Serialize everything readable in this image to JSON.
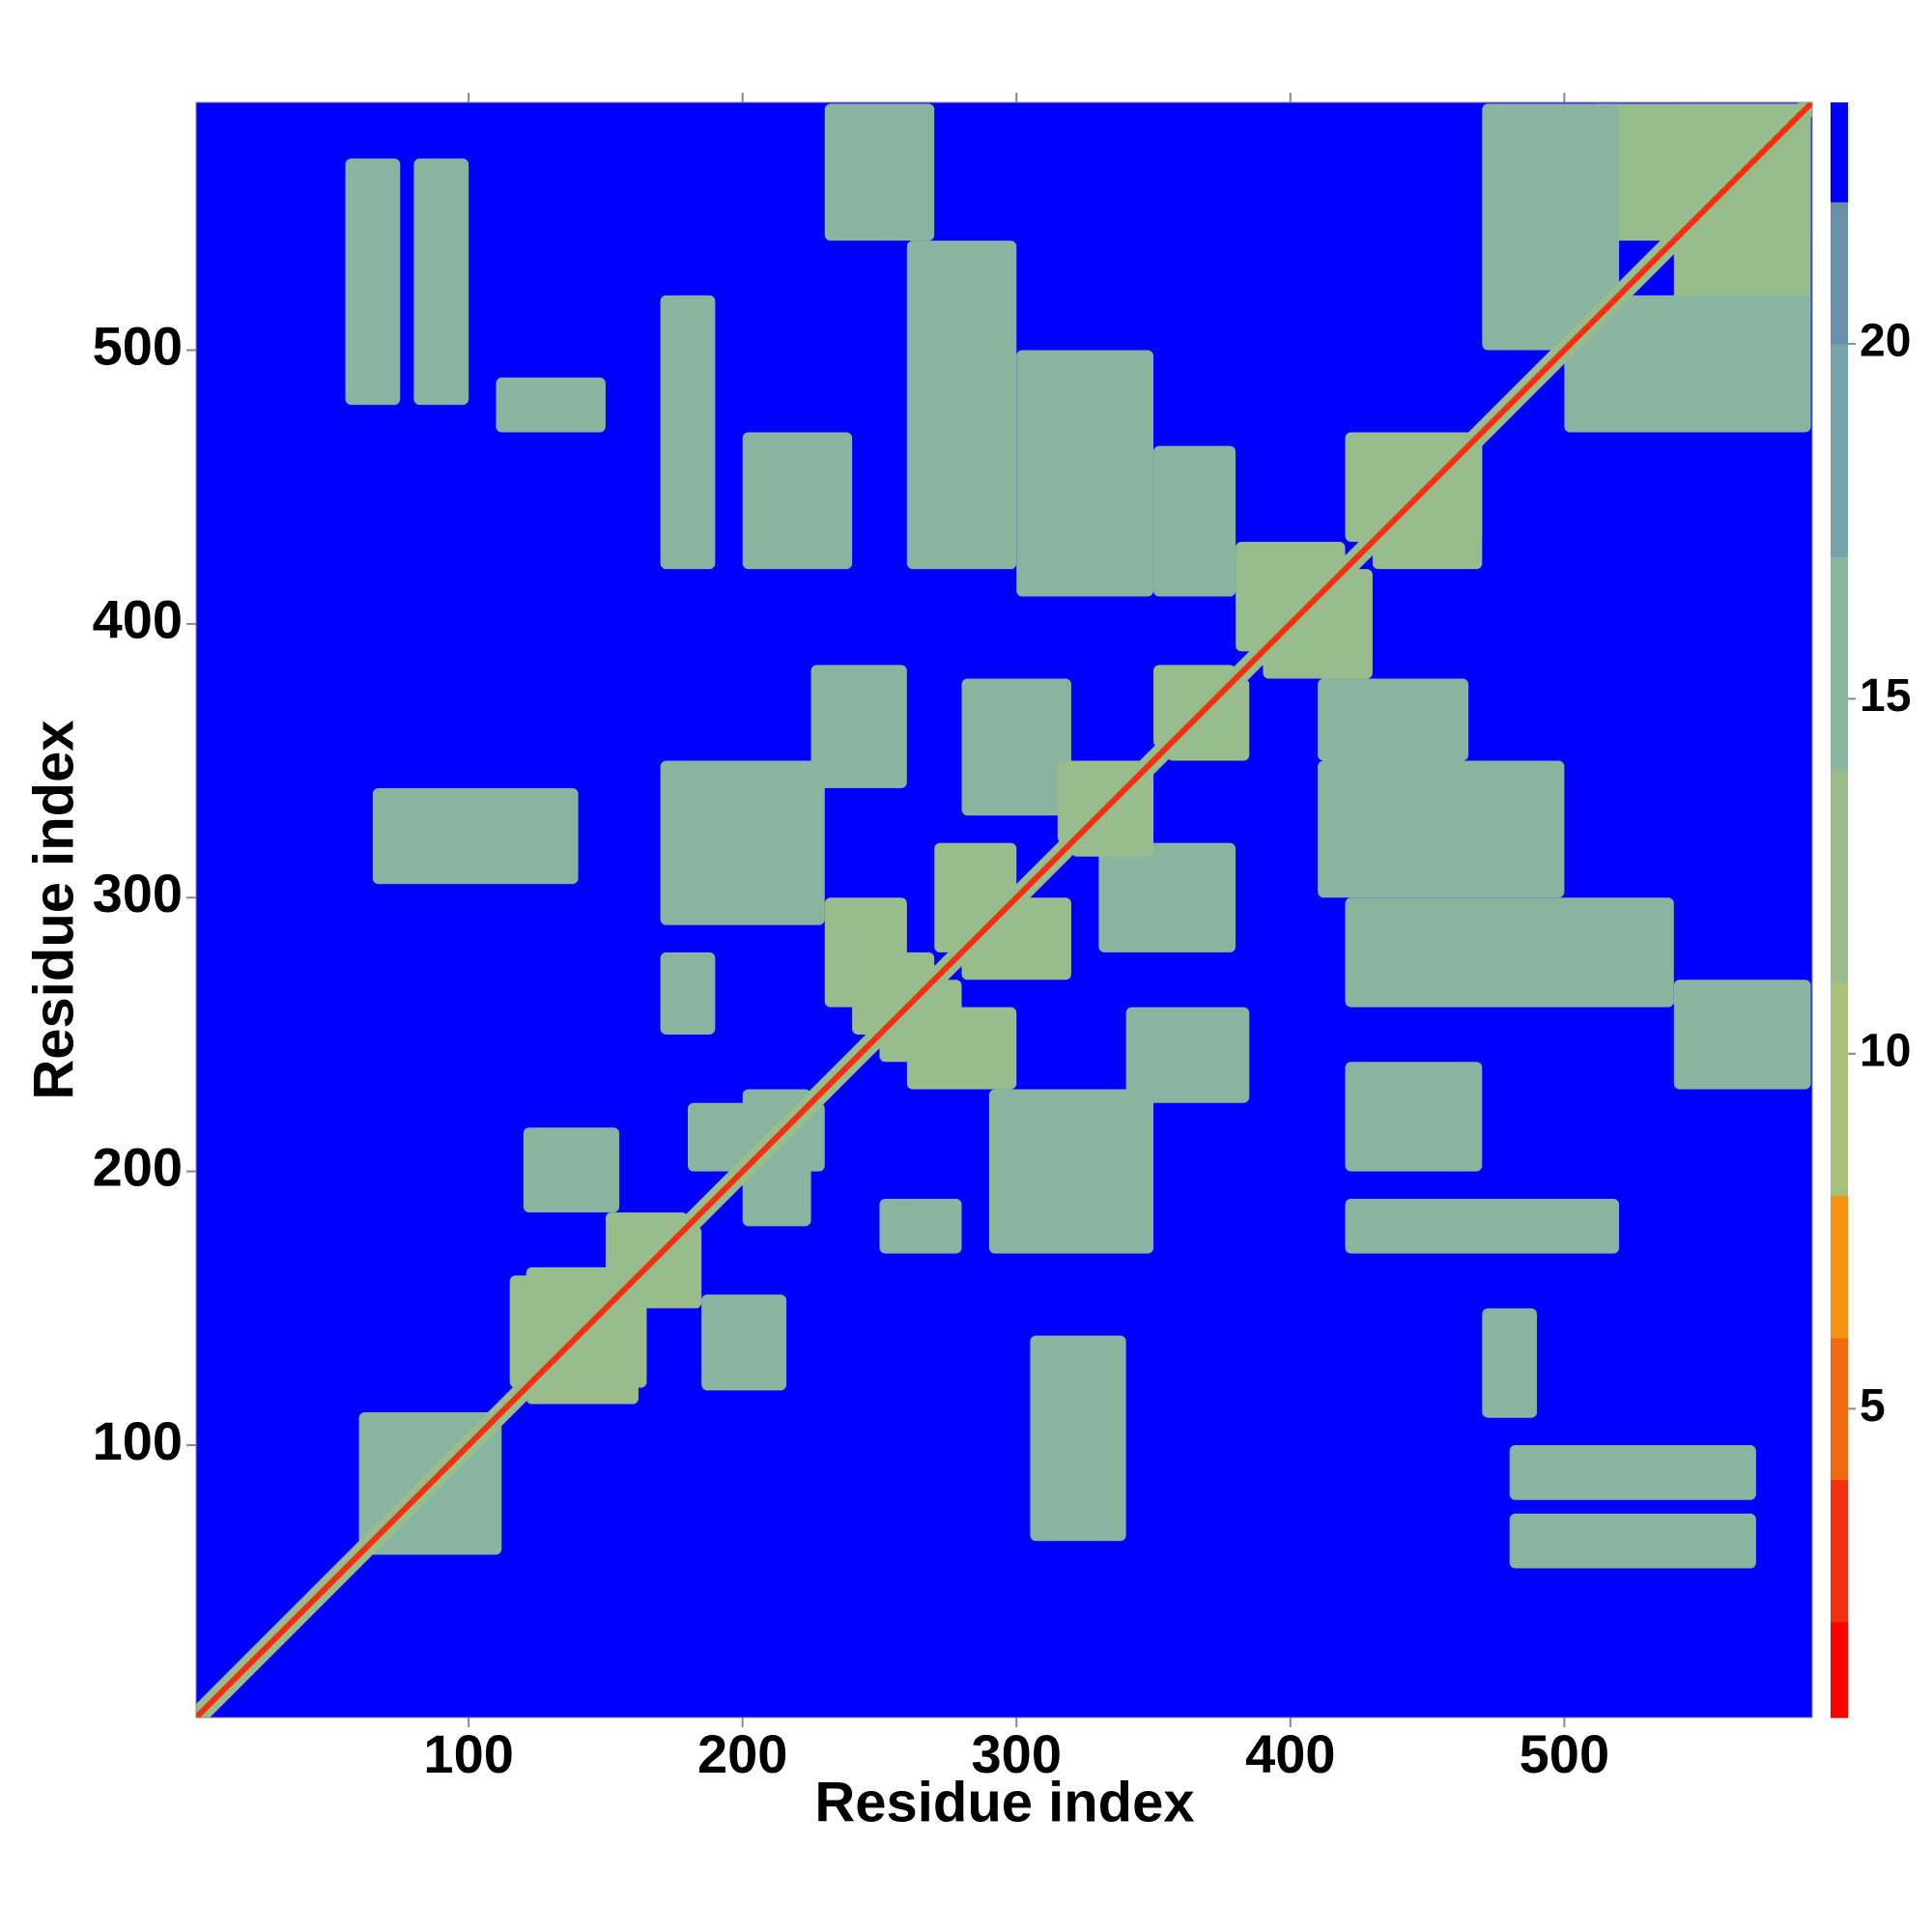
{
  "chart_data": {
    "type": "heatmap",
    "x_label": "Residue index",
    "y_label": "Residue index",
    "xlim": [
      0.5,
      590.5
    ],
    "ylim": [
      0.5,
      590.5
    ],
    "xticks": [
      100,
      200,
      300,
      400,
      500
    ],
    "yticks": [
      100,
      200,
      300,
      400,
      500
    ],
    "symmetric": true,
    "background_value": 23,
    "diagonal": [
      {
        "width": 10,
        "value": 13
      },
      {
        "width": 3,
        "value": 2
      }
    ],
    "patches": [
      {
        "x": [
          60,
          112
        ],
        "y": [
          60,
          112
        ],
        "value": 15
      },
      {
        "x": [
          55,
          75
        ],
        "y": [
          480,
          570
        ],
        "value": 15
      },
      {
        "x": [
          80,
          100
        ],
        "y": [
          480,
          570
        ],
        "value": 15
      },
      {
        "x": [
          110,
          150
        ],
        "y": [
          470,
          490
        ],
        "value": 16
      },
      {
        "x": [
          65,
          140
        ],
        "y": [
          305,
          340
        ],
        "value": 15
      },
      {
        "x": [
          170,
          190
        ],
        "y": [
          250,
          280
        ],
        "value": 16
      },
      {
        "x": [
          170,
          230
        ],
        "y": [
          290,
          350
        ],
        "value": 14
      },
      {
        "x": [
          225,
          260
        ],
        "y": [
          340,
          385
        ],
        "value": 14
      },
      {
        "x": [
          170,
          190
        ],
        "y": [
          420,
          520
        ],
        "value": 15
      },
      {
        "x": [
          200,
          240
        ],
        "y": [
          420,
          470
        ],
        "value": 15
      },
      {
        "x": [
          230,
          270
        ],
        "y": [
          540,
          590
        ],
        "value": 16
      },
      {
        "x": [
          260,
          300
        ],
        "y": [
          420,
          540
        ],
        "value": 15
      },
      {
        "x": [
          300,
          350
        ],
        "y": [
          410,
          500
        ],
        "value": 14
      },
      {
        "x": [
          280,
          320
        ],
        "y": [
          330,
          380
        ],
        "value": 14
      },
      {
        "x": [
          350,
          380
        ],
        "y": [
          410,
          465
        ],
        "value": 14
      },
      {
        "x": [
          230,
          260
        ],
        "y": [
          260,
          300
        ],
        "value": 13
      },
      {
        "x": [
          115,
          165
        ],
        "y": [
          121,
          162
        ],
        "value": 13
      },
      {
        "x": [
          120,
          155
        ],
        "y": [
          185,
          216
        ],
        "value": 15
      },
      {
        "x": [
          180,
          230
        ],
        "y": [
          200,
          225
        ],
        "value": 14
      },
      {
        "x": [
          510,
          590
        ],
        "y": [
          540,
          590
        ],
        "value": 13
      },
      {
        "x": [
          470,
          520
        ],
        "y": [
          500,
          590
        ],
        "value": 15
      },
      {
        "x": [
          430,
          470
        ],
        "y": [
          420,
          470
        ],
        "value": 13
      },
      {
        "x": [
          380,
          420
        ],
        "y": [
          390,
          430
        ],
        "value": 12
      },
      {
        "x": [
          350,
          380
        ],
        "y": [
          355,
          385
        ],
        "value": 13
      },
      {
        "x": [
          250,
          280
        ],
        "y": [
          240,
          270
        ],
        "value": 13
      },
      {
        "x": [
          150,
          180
        ],
        "y": [
          155,
          185
        ],
        "value": 13
      },
      {
        "x": [
          320,
          350
        ],
        "y": [
          315,
          350
        ],
        "value": 13
      },
      {
        "x": [
          270,
          300
        ],
        "y": [
          280,
          320
        ],
        "value": 13
      }
    ],
    "colorbar": {
      "bounds": [
        0.65,
        2,
        4,
        6,
        8,
        11,
        14,
        17,
        20,
        22,
        23.4
      ],
      "colors": [
        "#ff0000",
        "#f03010",
        "#f06a10",
        "#f59010",
        "#a8c078",
        "#98bc8c",
        "#88b4a0",
        "#75a4a8",
        "#6890a8",
        "#0000ff"
      ],
      "ticks": [
        5,
        10,
        15,
        20
      ]
    }
  }
}
